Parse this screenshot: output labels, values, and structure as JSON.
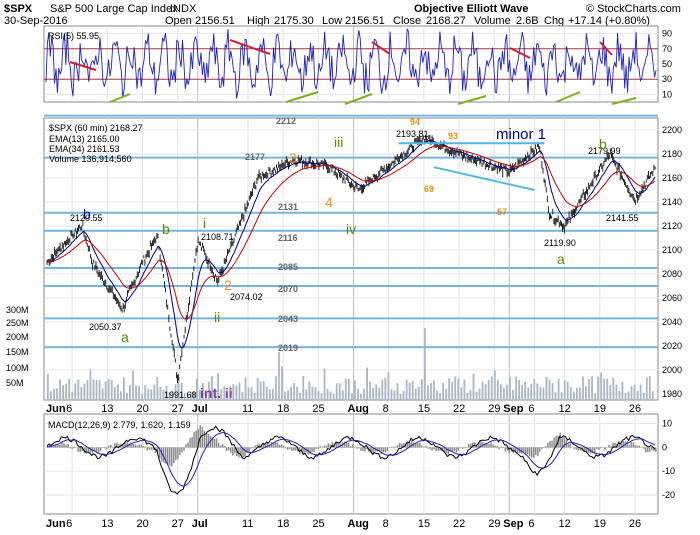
{
  "header": {
    "symbol": "$SPX",
    "name": "S&P 500 Large Cap Index",
    "exchange": "INDX",
    "date": "30-Sep-2016",
    "open_label": "Open",
    "open": "2156.51",
    "high_label": "High",
    "high": "2175.30",
    "low_label": "Low",
    "low": "2156.51",
    "close_label": "Close",
    "close": "2168.27",
    "volume_label": "Volume",
    "volume": "2.6B",
    "chg_label": "Chg",
    "chg": "+17.14 (+0.80%)",
    "title": "Objective Elliott Wave",
    "copyright": "© StockCharts.com"
  },
  "rsi": {
    "label": "RSI(5) 55.95",
    "yticks": [
      "90",
      "70",
      "50",
      "30",
      "10"
    ],
    "levels": [
      90,
      70,
      50,
      30,
      10
    ]
  },
  "main": {
    "legend": [
      {
        "text": "$SPX (60 min) 2168.27",
        "color": "#000000"
      },
      {
        "text": "EMA(13) 2165.00",
        "color": "#000080"
      },
      {
        "text": "EMA(34) 2161.53",
        "color": "#cc0000"
      },
      {
        "text": "Volume 136,914,560",
        "color": "#8a9aa8"
      }
    ],
    "yticks": [
      "2200",
      "2180",
      "2160",
      "2140",
      "2120",
      "2100",
      "2080",
      "2060",
      "2040",
      "2020",
      "2000",
      "1980"
    ],
    "volticks": [
      "300M",
      "250M",
      "200M",
      "150M",
      "100M",
      "50M"
    ],
    "xticks": [
      "Jun",
      "6",
      "13",
      "20",
      "27",
      "Jul",
      "11",
      "18",
      "25",
      "Aug",
      "8",
      "15",
      "22",
      "29",
      "Sep",
      "6",
      "12",
      "19",
      "26"
    ],
    "support_levels": [
      "2212",
      "2177",
      "2131",
      "2116",
      "2085",
      "2070",
      "2043",
      "2019"
    ],
    "price_labels": [
      "2120.55",
      "2050.37",
      "1991.68",
      "2108.71",
      "2074.02",
      "2193.81",
      "2119.90",
      "2179.99",
      "2141.55"
    ],
    "wave_labels": {
      "b1": "b",
      "a1": "a",
      "b2": "b",
      "i1": "i",
      "ii1": "ii",
      "int_ii": "int. ii",
      "two": "2",
      "three": "3",
      "four": "4",
      "iii": "iii",
      "iv": "iv",
      "minor1": "minor 1",
      "b3": "b",
      "a3": "a"
    },
    "sub_labels": [
      "94",
      "93",
      "69",
      "57"
    ]
  },
  "macd": {
    "label": "MACD(12,26,9) 2.779, 1.620, 1.159",
    "yticks": [
      "10",
      "0",
      "-10",
      "-20"
    ]
  },
  "chart_data": {
    "type": "line",
    "title": "$SPX (60 min)",
    "x_range": [
      "2016-06-01",
      "2016-09-30"
    ],
    "ylim": [
      1975,
      2210
    ],
    "grid": true,
    "key_points": [
      {
        "x": "2016-06-01",
        "y": 2090
      },
      {
        "x": "2016-06-08",
        "y": 2120.55
      },
      {
        "x": "2016-06-10",
        "y": 2090
      },
      {
        "x": "2016-06-16",
        "y": 2050.37
      },
      {
        "x": "2016-06-20",
        "y": 2090
      },
      {
        "x": "2016-06-23",
        "y": 2112
      },
      {
        "x": "2016-06-27",
        "y": 1991.68
      },
      {
        "x": "2016-07-01",
        "y": 2108.71
      },
      {
        "x": "2016-07-05",
        "y": 2074.02
      },
      {
        "x": "2016-07-13",
        "y": 2160
      },
      {
        "x": "2016-07-20",
        "y": 2175
      },
      {
        "x": "2016-07-27",
        "y": 2170
      },
      {
        "x": "2016-08-02",
        "y": 2150
      },
      {
        "x": "2016-08-15",
        "y": 2193.81
      },
      {
        "x": "2016-08-22",
        "y": 2180
      },
      {
        "x": "2016-09-01",
        "y": 2165
      },
      {
        "x": "2016-09-07",
        "y": 2187
      },
      {
        "x": "2016-09-09",
        "y": 2130
      },
      {
        "x": "2016-09-12",
        "y": 2119.9
      },
      {
        "x": "2016-09-21",
        "y": 2179.99
      },
      {
        "x": "2016-09-26",
        "y": 2141.55
      },
      {
        "x": "2016-09-30",
        "y": 2168.27
      }
    ],
    "rsi_range": [
      0,
      100
    ],
    "macd_range": [
      -28,
      14
    ]
  }
}
